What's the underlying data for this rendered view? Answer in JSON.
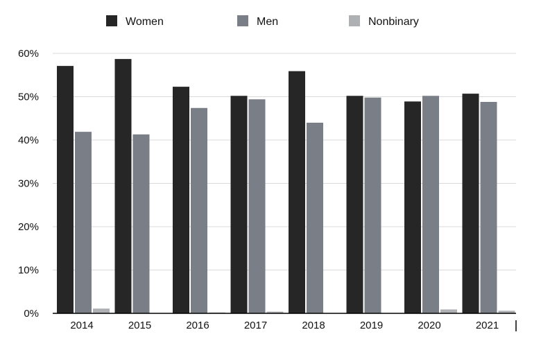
{
  "chart_data": {
    "type": "bar",
    "title": "",
    "xlabel": "",
    "ylabel": "",
    "categories": [
      "2014",
      "2015",
      "2016",
      "2017",
      "2018",
      "2019",
      "2020",
      "2021"
    ],
    "series": [
      {
        "name": "Women",
        "color": "#262626",
        "values": [
          57.1,
          58.7,
          52.3,
          50.2,
          55.9,
          50.2,
          48.9,
          50.7
        ]
      },
      {
        "name": "Men",
        "color": "#7a7f87",
        "values": [
          41.9,
          41.3,
          47.4,
          49.4,
          44.0,
          49.8,
          50.2,
          48.8
        ]
      },
      {
        "name": "Nonbinary",
        "color": "#aeb0b3",
        "values": [
          1.1,
          0.0,
          0.2,
          0.4,
          0.0,
          0.0,
          0.9,
          0.6
        ]
      }
    ],
    "ylim": [
      0,
      60
    ],
    "yticks": [
      0,
      10,
      20,
      30,
      40,
      50,
      60
    ],
    "ytick_format": "{v}%",
    "grid": true,
    "legend_position": "top-center"
  }
}
